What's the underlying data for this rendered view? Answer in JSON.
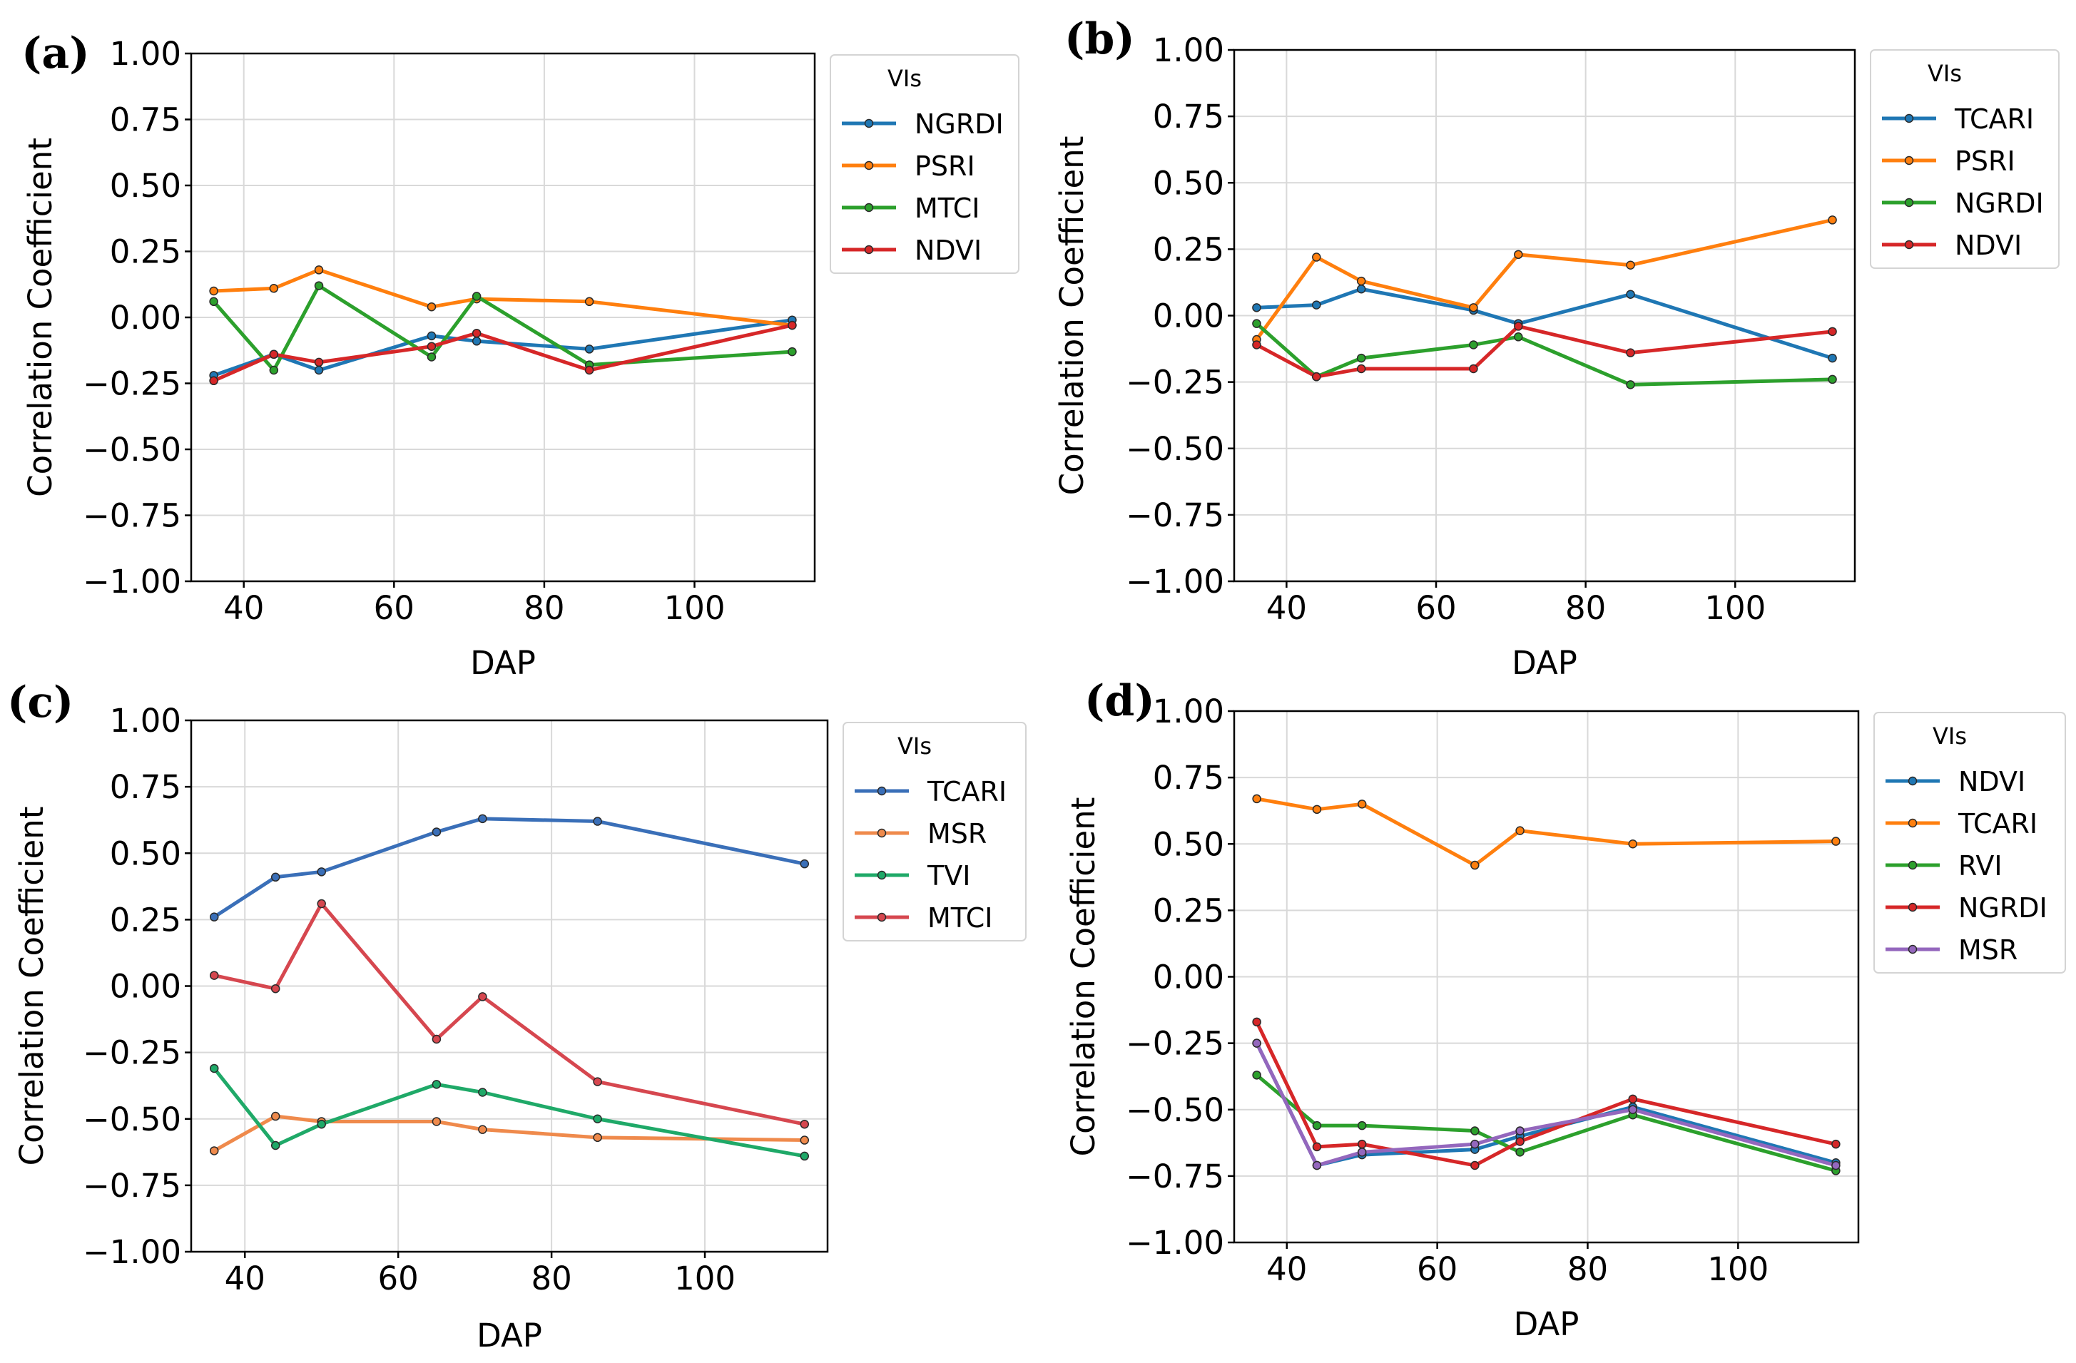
{
  "chart_data": [
    {
      "type": "line",
      "panel_label": "(a)",
      "title": "",
      "xlabel": "DAP",
      "ylabel": "Correlation Coefficient",
      "xlim": [
        33,
        116
      ],
      "ylim": [
        -1.0,
        1.0
      ],
      "xticks": [
        40,
        60,
        80,
        100
      ],
      "xtick_labels": [
        "40",
        "60",
        "80",
        "100"
      ],
      "yticks": [
        1.0,
        0.75,
        0.5,
        0.25,
        0.0,
        -0.25,
        -0.5,
        -0.75,
        -1.0
      ],
      "ytick_labels": [
        "1.00",
        "0.75",
        "0.50",
        "0.25",
        "0.00",
        "−0.25",
        "−0.50",
        "−0.75",
        "−1.00"
      ],
      "grid": true,
      "legend_title": "VIs",
      "legend_position": "outside-right",
      "x": [
        36,
        44,
        50,
        65,
        71,
        86,
        113
      ],
      "series": [
        {
          "name": "NGRDI",
          "color": "#1f77b4",
          "values": [
            -0.22,
            -0.14,
            -0.2,
            -0.07,
            -0.09,
            -0.12,
            -0.01
          ]
        },
        {
          "name": "PSRI",
          "color": "#ff7f0e",
          "values": [
            0.1,
            0.11,
            0.18,
            0.04,
            0.07,
            0.06,
            -0.03
          ]
        },
        {
          "name": "MTCI",
          "color": "#2ca02c",
          "values": [
            0.06,
            -0.2,
            0.12,
            -0.15,
            0.08,
            -0.18,
            -0.13
          ]
        },
        {
          "name": "NDVI",
          "color": "#d62728",
          "values": [
            -0.24,
            -0.14,
            -0.17,
            -0.11,
            -0.06,
            -0.2,
            -0.03
          ]
        }
      ]
    },
    {
      "type": "line",
      "panel_label": "(b)",
      "title": "",
      "xlabel": "DAP",
      "ylabel": "Correlation Coefficient",
      "xlim": [
        33,
        116
      ],
      "ylim": [
        -1.0,
        1.0
      ],
      "xticks": [
        40,
        60,
        80,
        100
      ],
      "xtick_labels": [
        "40",
        "60",
        "80",
        "100"
      ],
      "yticks": [
        1.0,
        0.75,
        0.5,
        0.25,
        0.0,
        -0.25,
        -0.5,
        -0.75,
        -1.0
      ],
      "ytick_labels": [
        "1.00",
        "0.75",
        "0.50",
        "0.25",
        "0.00",
        "−0.25",
        "−0.50",
        "−0.75",
        "−1.00"
      ],
      "grid": true,
      "legend_title": "VIs",
      "legend_position": "outside-right",
      "x": [
        36,
        44,
        50,
        65,
        71,
        86,
        113
      ],
      "series": [
        {
          "name": "TCARI",
          "color": "#1f77b4",
          "values": [
            0.03,
            0.04,
            0.1,
            0.02,
            -0.03,
            0.08,
            -0.16
          ]
        },
        {
          "name": "PSRI",
          "color": "#ff7f0e",
          "values": [
            -0.09,
            0.22,
            0.13,
            0.03,
            0.23,
            0.19,
            0.36
          ]
        },
        {
          "name": "NGRDI",
          "color": "#2ca02c",
          "values": [
            -0.03,
            -0.23,
            -0.16,
            -0.11,
            -0.08,
            -0.26,
            -0.24
          ]
        },
        {
          "name": "NDVI",
          "color": "#d62728",
          "values": [
            -0.11,
            -0.23,
            -0.2,
            -0.2,
            -0.04,
            -0.14,
            -0.06
          ]
        }
      ]
    },
    {
      "type": "line",
      "panel_label": "(c)",
      "title": "",
      "xlabel": "DAP",
      "ylabel": "Correlation Coefficient",
      "xlim": [
        33,
        116
      ],
      "ylim": [
        -1.0,
        1.0
      ],
      "xticks": [
        40,
        60,
        80,
        100
      ],
      "xtick_labels": [
        "40",
        "60",
        "80",
        "100"
      ],
      "yticks": [
        1.0,
        0.75,
        0.5,
        0.25,
        0.0,
        -0.25,
        -0.5,
        -0.75,
        -1.0
      ],
      "ytick_labels": [
        "1.00",
        "0.75",
        "0.50",
        "0.25",
        "0.00",
        "−0.25",
        "−0.50",
        "−0.75",
        "−1.00"
      ],
      "grid": true,
      "legend_title": "VIs",
      "legend_position": "outside-right",
      "x": [
        36,
        44,
        50,
        65,
        71,
        86,
        113
      ],
      "series": [
        {
          "name": "TCARI",
          "color": "#3a6fb8",
          "values": [
            0.26,
            0.41,
            0.43,
            0.58,
            0.63,
            0.62,
            0.46
          ]
        },
        {
          "name": "MSR",
          "color": "#ef8a4c",
          "values": [
            -0.62,
            -0.49,
            -0.51,
            -0.51,
            -0.54,
            -0.57,
            -0.58
          ]
        },
        {
          "name": "TVI",
          "color": "#1fa968",
          "values": [
            -0.31,
            -0.6,
            -0.52,
            -0.37,
            -0.4,
            -0.5,
            -0.64
          ]
        },
        {
          "name": "MTCI",
          "color": "#d6474f",
          "values": [
            0.04,
            -0.01,
            0.31,
            -0.2,
            -0.04,
            -0.36,
            -0.52
          ]
        }
      ]
    },
    {
      "type": "line",
      "panel_label": "(d)",
      "title": "",
      "xlabel": "DAP",
      "ylabel": "Correlation Coefficient",
      "xlim": [
        33,
        116
      ],
      "ylim": [
        -1.0,
        1.0
      ],
      "xticks": [
        40,
        60,
        80,
        100
      ],
      "xtick_labels": [
        "40",
        "60",
        "80",
        "100"
      ],
      "yticks": [
        1.0,
        0.75,
        0.5,
        0.25,
        0.0,
        -0.25,
        -0.5,
        -0.75,
        -1.0
      ],
      "ytick_labels": [
        "1.00",
        "0.75",
        "0.50",
        "0.25",
        "0.00",
        "−0.25",
        "−0.50",
        "−0.75",
        "−1.00"
      ],
      "grid": true,
      "legend_title": "VIs",
      "legend_position": "outside-right",
      "x": [
        36,
        44,
        50,
        65,
        71,
        86,
        113
      ],
      "series": [
        {
          "name": "NDVI",
          "color": "#1f77b4",
          "values": [
            -0.25,
            -0.71,
            -0.67,
            -0.65,
            -0.6,
            -0.49,
            -0.7
          ]
        },
        {
          "name": "TCARI",
          "color": "#ff7f0e",
          "values": [
            0.67,
            0.63,
            0.65,
            0.42,
            0.55,
            0.5,
            0.51
          ]
        },
        {
          "name": "RVI",
          "color": "#2ca02c",
          "values": [
            -0.37,
            -0.56,
            -0.56,
            -0.58,
            -0.66,
            -0.52,
            -0.73
          ]
        },
        {
          "name": "NGRDI",
          "color": "#d62728",
          "values": [
            -0.17,
            -0.64,
            -0.63,
            -0.71,
            -0.62,
            -0.46,
            -0.63
          ]
        },
        {
          "name": "MSR",
          "color": "#9467bd",
          "values": [
            -0.25,
            -0.71,
            -0.66,
            -0.63,
            -0.58,
            -0.5,
            -0.71
          ]
        }
      ]
    }
  ]
}
